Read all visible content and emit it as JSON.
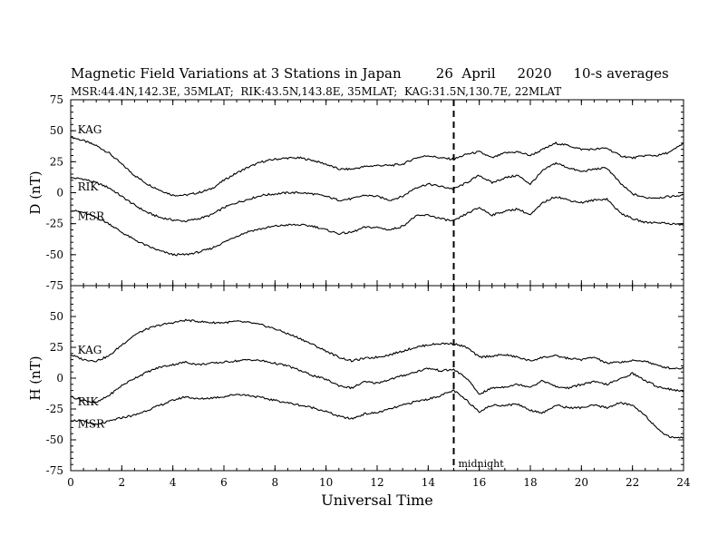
{
  "header": {
    "title": "Magnetic Field Variations at 3 Stations in Japan        26  April     2020     10-s averages",
    "subtitle": "MSR:44.4N,142.3E, 35MLAT;  RIK:43.5N,143.8E, 35MLAT;  KAG:31.5N,130.7E, 22MLAT"
  },
  "chart_data": [
    {
      "type": "line",
      "panel": "top",
      "ylabel": "D (nT)",
      "ylim": [
        -75,
        75
      ],
      "yticks": [
        -75,
        -50,
        -25,
        0,
        25,
        50,
        75
      ],
      "xlim": [
        0,
        24
      ],
      "xticks": [
        0,
        2,
        4,
        6,
        8,
        10,
        12,
        14,
        16,
        18,
        20,
        22,
        24
      ],
      "grid": false,
      "series": [
        {
          "name": "KAG",
          "x": [
            0,
            0.5,
            1,
            1.5,
            2,
            2.5,
            3,
            3.5,
            4,
            4.5,
            5,
            5.5,
            6,
            6.5,
            7,
            7.5,
            8,
            8.5,
            9,
            9.5,
            10,
            10.5,
            11,
            11.5,
            12,
            12.5,
            13,
            13.5,
            14,
            14.5,
            15,
            15.5,
            16,
            16.5,
            17,
            17.5,
            18,
            18.5,
            19,
            19.5,
            20,
            20.5,
            21,
            21.5,
            22,
            22.5,
            23,
            23.5,
            24
          ],
          "values": [
            45,
            42,
            38,
            32,
            23,
            14,
            7,
            2,
            -2,
            -2,
            0,
            3,
            10,
            16,
            21,
            25,
            27,
            28,
            28,
            26,
            23,
            19,
            19,
            21,
            22,
            22,
            23,
            28,
            30,
            28,
            27,
            31,
            33,
            28,
            32,
            33,
            30,
            35,
            40,
            38,
            35,
            35,
            36,
            30,
            28,
            30,
            30,
            33,
            40
          ]
        },
        {
          "name": "RIK",
          "x": [
            0,
            0.5,
            1,
            1.5,
            2,
            2.5,
            3,
            3.5,
            4,
            4.5,
            5,
            5.5,
            6,
            6.5,
            7,
            7.5,
            8,
            8.5,
            9,
            9.5,
            10,
            10.5,
            11,
            11.5,
            12,
            12.5,
            13,
            13.5,
            14,
            14.5,
            15,
            15.5,
            16,
            16.5,
            17,
            17.5,
            18,
            18.5,
            19,
            19.5,
            20,
            20.5,
            21,
            21.5,
            22,
            22.5,
            23,
            23.5,
            24
          ],
          "values": [
            12,
            11,
            8,
            4,
            -3,
            -10,
            -16,
            -20,
            -22,
            -23,
            -21,
            -18,
            -12,
            -8,
            -5,
            -2,
            -1,
            0,
            0,
            -1,
            -3,
            -6,
            -5,
            -2,
            -3,
            -6,
            -3,
            4,
            7,
            5,
            3,
            8,
            14,
            8,
            12,
            14,
            7,
            18,
            24,
            20,
            17,
            19,
            20,
            8,
            -1,
            -4,
            -4,
            -3,
            -2
          ]
        },
        {
          "name": "MSR",
          "x": [
            0,
            0.5,
            1,
            1.5,
            2,
            2.5,
            3,
            3.5,
            4,
            4.5,
            5,
            5.5,
            6,
            6.5,
            7,
            7.5,
            8,
            8.5,
            9,
            9.5,
            10,
            10.5,
            11,
            11.5,
            12,
            12.5,
            13,
            13.5,
            14,
            14.5,
            15,
            15.5,
            16,
            16.5,
            17,
            17.5,
            18,
            18.5,
            19,
            19.5,
            20,
            20.5,
            21,
            21.5,
            22,
            22.5,
            23,
            23.5,
            24
          ],
          "values": [
            -14,
            -16,
            -20,
            -25,
            -32,
            -38,
            -43,
            -47,
            -50,
            -50,
            -48,
            -45,
            -40,
            -35,
            -31,
            -29,
            -27,
            -26,
            -26,
            -27,
            -30,
            -33,
            -32,
            -28,
            -28,
            -30,
            -27,
            -19,
            -18,
            -21,
            -23,
            -17,
            -12,
            -18,
            -15,
            -13,
            -18,
            -8,
            -3,
            -6,
            -8,
            -6,
            -5,
            -16,
            -21,
            -24,
            -24,
            -25,
            -26
          ]
        }
      ],
      "labels": [
        {
          "text": "KAG",
          "x": 0.2,
          "y": 48
        },
        {
          "text": "RIK",
          "x": 0.2,
          "y": 2
        },
        {
          "text": "MSR",
          "x": 0.2,
          "y": -22
        }
      ]
    },
    {
      "type": "line",
      "panel": "bottom",
      "ylabel": "H (nT)",
      "xlabel": "Universal Time",
      "ylim": [
        -75,
        75
      ],
      "yticks": [
        -75,
        -50,
        -25,
        0,
        25,
        50,
        75
      ],
      "xlim": [
        0,
        24
      ],
      "xticks": [
        0,
        2,
        4,
        6,
        8,
        10,
        12,
        14,
        16,
        18,
        20,
        22,
        24
      ],
      "grid": false,
      "series": [
        {
          "name": "KAG",
          "x": [
            0,
            0.5,
            1,
            1.5,
            2,
            2.5,
            3,
            3.5,
            4,
            4.5,
            5,
            5.5,
            6,
            6.5,
            7,
            7.5,
            8,
            8.5,
            9,
            9.5,
            10,
            10.5,
            11,
            11.5,
            12,
            12.5,
            13,
            13.5,
            14,
            14.5,
            15,
            15.5,
            16,
            16.5,
            17,
            17.5,
            18,
            18.5,
            19,
            19.5,
            20,
            20.5,
            21,
            21.5,
            22,
            22.5,
            23,
            23.5,
            24
          ],
          "values": [
            19,
            15,
            14,
            18,
            27,
            35,
            40,
            43,
            45,
            47,
            46,
            45,
            45,
            46,
            45,
            43,
            40,
            36,
            32,
            27,
            22,
            17,
            14,
            16,
            17,
            19,
            22,
            25,
            27,
            28,
            28,
            25,
            17,
            18,
            19,
            17,
            14,
            17,
            18,
            16,
            15,
            17,
            12,
            13,
            14,
            14,
            10,
            8,
            8
          ]
        },
        {
          "name": "RIK",
          "x": [
            0,
            0.5,
            1,
            1.5,
            2,
            2.5,
            3,
            3.5,
            4,
            4.5,
            5,
            5.5,
            6,
            6.5,
            7,
            7.5,
            8,
            8.5,
            9,
            9.5,
            10,
            10.5,
            11,
            11.5,
            12,
            12.5,
            13,
            13.5,
            14,
            14.5,
            15,
            15.5,
            16,
            16.5,
            17,
            17.5,
            18,
            18.5,
            19,
            19.5,
            20,
            20.5,
            21,
            21.5,
            22,
            22.5,
            23,
            23.5,
            24
          ],
          "values": [
            -15,
            -18,
            -20,
            -14,
            -6,
            0,
            5,
            9,
            11,
            13,
            11,
            12,
            13,
            14,
            15,
            14,
            12,
            10,
            6,
            2,
            -1,
            -6,
            -8,
            -3,
            -4,
            -1,
            2,
            5,
            8,
            6,
            7,
            0,
            -13,
            -8,
            -7,
            -5,
            -7,
            -2,
            -7,
            -8,
            -5,
            -3,
            -5,
            -1,
            4,
            -2,
            -7,
            -9,
            -11
          ]
        },
        {
          "name": "MSR",
          "x": [
            0,
            0.5,
            1,
            1.5,
            2,
            2.5,
            3,
            3.5,
            4,
            4.5,
            5,
            5.5,
            6,
            6.5,
            7,
            7.5,
            8,
            8.5,
            9,
            9.5,
            10,
            10.5,
            11,
            11.5,
            12,
            12.5,
            13,
            13.5,
            14,
            14.5,
            15,
            15.5,
            16,
            16.5,
            17,
            17.5,
            18,
            18.5,
            19,
            19.5,
            20,
            20.5,
            21,
            21.5,
            22,
            22.5,
            23,
            23.5,
            24
          ],
          "values": [
            -34,
            -35,
            -38,
            -35,
            -32,
            -30,
            -26,
            -22,
            -18,
            -15,
            -17,
            -16,
            -15,
            -13,
            -14,
            -16,
            -18,
            -20,
            -22,
            -24,
            -27,
            -31,
            -33,
            -29,
            -28,
            -25,
            -22,
            -19,
            -17,
            -14,
            -10,
            -18,
            -27,
            -22,
            -22,
            -21,
            -26,
            -28,
            -22,
            -24,
            -24,
            -22,
            -24,
            -20,
            -22,
            -30,
            -42,
            -48,
            -48
          ]
        }
      ],
      "labels": [
        {
          "text": "KAG",
          "x": 0.2,
          "y": 20
        },
        {
          "text": "RIK",
          "x": 0.2,
          "y": -22
        },
        {
          "text": "MSR",
          "x": 0.2,
          "y": -40
        }
      ],
      "annotation": {
        "text": "midnight",
        "x": 15
      }
    }
  ]
}
